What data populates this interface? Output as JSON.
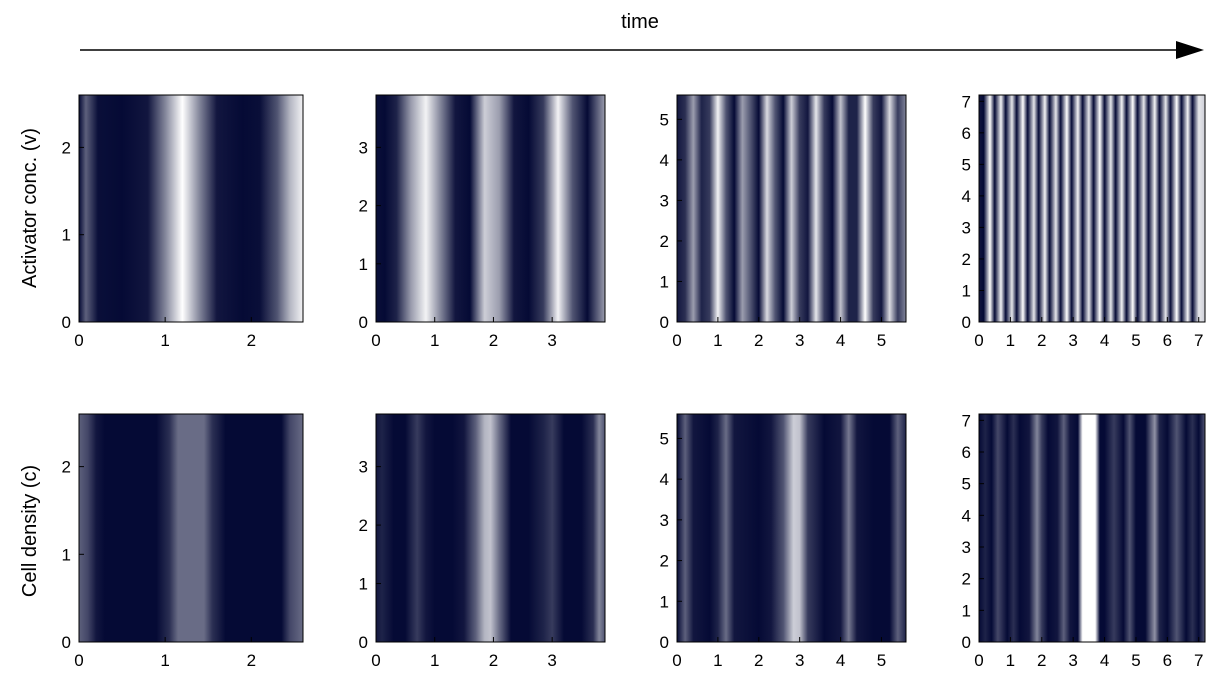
{
  "header": {
    "time_label": "time"
  },
  "rows": [
    {
      "ylabel": "Activator conc. (v)"
    },
    {
      "ylabel": "Cell density (c)"
    }
  ],
  "colors": {
    "dark": "#050a35",
    "light": "#ffffff",
    "axis": "#000000"
  },
  "chart_data": [
    {
      "type": "heatmap",
      "row": 0,
      "col": 0,
      "title": "",
      "xlabel": "",
      "ylabel": "Activator conc. (v)",
      "xlim": [
        0,
        2.6
      ],
      "ylim": [
        0,
        2.6
      ],
      "xticks": [
        0,
        1,
        2
      ],
      "yticks": [
        0,
        1,
        2
      ],
      "profile": {
        "x": [
          0,
          0.08,
          0.22,
          0.5,
          0.8,
          1.0,
          1.2,
          1.4,
          1.6,
          1.9,
          2.1,
          2.3,
          2.45,
          2.6
        ],
        "intensity": [
          0.0,
          0.35,
          0.02,
          0.0,
          0.05,
          0.5,
          1.0,
          0.5,
          0.05,
          0.0,
          0.02,
          0.3,
          0.7,
          0.95
        ]
      }
    },
    {
      "type": "heatmap",
      "row": 0,
      "col": 1,
      "title": "",
      "xlabel": "",
      "ylabel": "",
      "xlim": [
        0,
        3.9
      ],
      "ylim": [
        0,
        3.9
      ],
      "xticks": [
        0,
        1,
        2,
        3
      ],
      "yticks": [
        0,
        1,
        2,
        3
      ],
      "profile": {
        "x": [
          0,
          0.15,
          0.35,
          0.6,
          0.85,
          1.1,
          1.35,
          1.6,
          1.85,
          2.1,
          2.35,
          2.6,
          2.85,
          3.1,
          3.35,
          3.6,
          3.9
        ],
        "intensity": [
          0.02,
          0.0,
          0.1,
          0.6,
          0.95,
          0.5,
          0.05,
          0.0,
          0.8,
          0.6,
          0.05,
          0.0,
          0.2,
          0.95,
          0.3,
          0.0,
          0.6
        ]
      }
    },
    {
      "type": "heatmap",
      "row": 0,
      "col": 2,
      "title": "",
      "xlabel": "",
      "ylabel": "",
      "xlim": [
        0,
        5.6
      ],
      "ylim": [
        0,
        5.6
      ],
      "xticks": [
        0,
        1,
        2,
        3,
        4,
        5
      ],
      "yticks": [
        0,
        1,
        2,
        3,
        4,
        5
      ],
      "profile": {
        "x": [
          0,
          0.2,
          0.4,
          0.6,
          0.8,
          1.0,
          1.2,
          1.4,
          1.6,
          1.8,
          2.0,
          2.2,
          2.4,
          2.6,
          2.8,
          3.0,
          3.2,
          3.4,
          3.6,
          3.8,
          4.0,
          4.2,
          4.4,
          4.6,
          4.8,
          5.0,
          5.2,
          5.4,
          5.6
        ],
        "intensity": [
          0.05,
          0.15,
          0.6,
          0.1,
          0.2,
          0.95,
          0.3,
          0.0,
          0.6,
          0.3,
          0.0,
          0.85,
          0.3,
          0.0,
          0.8,
          0.2,
          0.05,
          0.9,
          0.2,
          0.0,
          0.75,
          0.1,
          0.1,
          1.0,
          0.2,
          0.05,
          0.85,
          0.2,
          0.5
        ]
      }
    },
    {
      "type": "heatmap",
      "row": 0,
      "col": 3,
      "title": "",
      "xlabel": "",
      "ylabel": "",
      "xlim": [
        0,
        7.2
      ],
      "ylim": [
        0,
        7.2
      ],
      "xticks": [
        0,
        1,
        2,
        3,
        4,
        5,
        6,
        7
      ],
      "yticks": [
        0,
        1,
        2,
        3,
        4,
        5,
        6,
        7
      ],
      "profile": {
        "x": [
          0,
          0.15,
          0.35,
          0.5,
          0.7,
          0.85,
          1.05,
          1.2,
          1.4,
          1.55,
          1.75,
          1.9,
          2.1,
          2.25,
          2.45,
          2.6,
          2.8,
          2.95,
          3.15,
          3.3,
          3.5,
          3.65,
          3.85,
          4.0,
          4.2,
          4.35,
          4.55,
          4.7,
          4.9,
          5.05,
          5.25,
          5.4,
          5.6,
          5.75,
          5.95,
          6.1,
          6.3,
          6.45,
          6.65,
          6.8,
          7.0,
          7.2
        ],
        "intensity": [
          0.05,
          0.0,
          1.0,
          0.0,
          0.95,
          0.0,
          0.9,
          0.0,
          1.0,
          0.0,
          0.9,
          0.0,
          0.95,
          0.0,
          0.9,
          0.0,
          1.0,
          0.0,
          0.95,
          0.0,
          0.9,
          0.0,
          1.0,
          0.0,
          0.9,
          0.0,
          0.95,
          0.0,
          1.0,
          0.0,
          0.9,
          0.0,
          0.95,
          0.0,
          0.9,
          0.0,
          1.0,
          0.0,
          0.95,
          0.0,
          0.9,
          0.8
        ]
      }
    },
    {
      "type": "heatmap",
      "row": 1,
      "col": 0,
      "title": "",
      "xlabel": "",
      "ylabel": "Cell density (c)",
      "xlim": [
        0,
        2.6
      ],
      "ylim": [
        0,
        2.6
      ],
      "xticks": [
        0,
        1,
        2
      ],
      "yticks": [
        0,
        1,
        2
      ],
      "profile": {
        "x": [
          0,
          0.1,
          0.2,
          0.3,
          0.9,
          1.05,
          1.15,
          1.45,
          1.55,
          1.7,
          2.35,
          2.45,
          2.6
        ],
        "intensity": [
          0.35,
          0.25,
          0.05,
          0.0,
          0.0,
          0.15,
          0.4,
          0.4,
          0.15,
          0.0,
          0.0,
          0.25,
          0.4
        ]
      }
    },
    {
      "type": "heatmap",
      "row": 1,
      "col": 1,
      "title": "",
      "xlabel": "",
      "ylabel": "",
      "xlim": [
        0,
        3.9
      ],
      "ylim": [
        0,
        3.9
      ],
      "xticks": [
        0,
        1,
        2,
        3
      ],
      "yticks": [
        0,
        1,
        2,
        3
      ],
      "profile": {
        "x": [
          0,
          0.1,
          0.3,
          0.5,
          0.7,
          0.85,
          1.0,
          1.3,
          1.5,
          1.7,
          1.85,
          1.95,
          2.1,
          2.3,
          2.6,
          2.85,
          3.0,
          3.2,
          3.5,
          3.7,
          3.8,
          3.9
        ],
        "intensity": [
          0.05,
          0.1,
          0.0,
          0.0,
          0.2,
          0.05,
          0.0,
          0.0,
          0.05,
          0.35,
          0.7,
          0.75,
          0.4,
          0.0,
          0.0,
          0.1,
          0.2,
          0.0,
          0.0,
          0.15,
          0.5,
          0.3
        ]
      }
    },
    {
      "type": "heatmap",
      "row": 1,
      "col": 2,
      "title": "",
      "xlabel": "",
      "ylabel": "",
      "xlim": [
        0,
        5.6
      ],
      "ylim": [
        0,
        5.6
      ],
      "xticks": [
        0,
        1,
        2,
        3,
        4,
        5
      ],
      "yticks": [
        0,
        1,
        2,
        3,
        4,
        5
      ],
      "profile": {
        "x": [
          0,
          0.2,
          0.4,
          0.8,
          1.0,
          1.2,
          1.4,
          2.0,
          2.3,
          2.6,
          2.85,
          3.0,
          3.2,
          3.6,
          4.0,
          4.2,
          4.4,
          4.8,
          5.2,
          5.4,
          5.6
        ],
        "intensity": [
          0.0,
          0.35,
          0.05,
          0.0,
          0.1,
          0.4,
          0.05,
          0.0,
          0.05,
          0.3,
          0.8,
          0.75,
          0.2,
          0.0,
          0.05,
          0.45,
          0.05,
          0.0,
          0.0,
          0.35,
          0.1
        ]
      }
    },
    {
      "type": "heatmap",
      "row": 1,
      "col": 3,
      "title": "",
      "xlabel": "",
      "ylabel": "",
      "xlim": [
        0,
        7.2
      ],
      "ylim": [
        0,
        7.2
      ],
      "xticks": [
        0,
        1,
        2,
        3,
        4,
        5,
        6,
        7
      ],
      "yticks": [
        0,
        1,
        2,
        3,
        4,
        5,
        6,
        7
      ],
      "profile": {
        "x": [
          0,
          0.2,
          0.4,
          0.6,
          0.9,
          1.1,
          1.3,
          1.6,
          1.85,
          2.0,
          2.2,
          2.5,
          2.7,
          2.9,
          3.15,
          3.3,
          3.4,
          3.7,
          3.85,
          4.0,
          4.3,
          4.6,
          4.8,
          5.0,
          5.3,
          5.6,
          5.75,
          6.0,
          6.3,
          6.6,
          6.8,
          7.0,
          7.2
        ],
        "intensity": [
          0.0,
          0.1,
          0.0,
          0.25,
          0.0,
          0.15,
          0.0,
          0.05,
          0.5,
          0.2,
          0.0,
          0.05,
          0.35,
          0.05,
          0.0,
          1.0,
          1.0,
          1.0,
          0.0,
          0.0,
          0.2,
          0.0,
          0.3,
          0.0,
          0.0,
          0.55,
          0.1,
          0.0,
          0.3,
          0.0,
          0.15,
          0.0,
          0.3
        ]
      }
    }
  ]
}
